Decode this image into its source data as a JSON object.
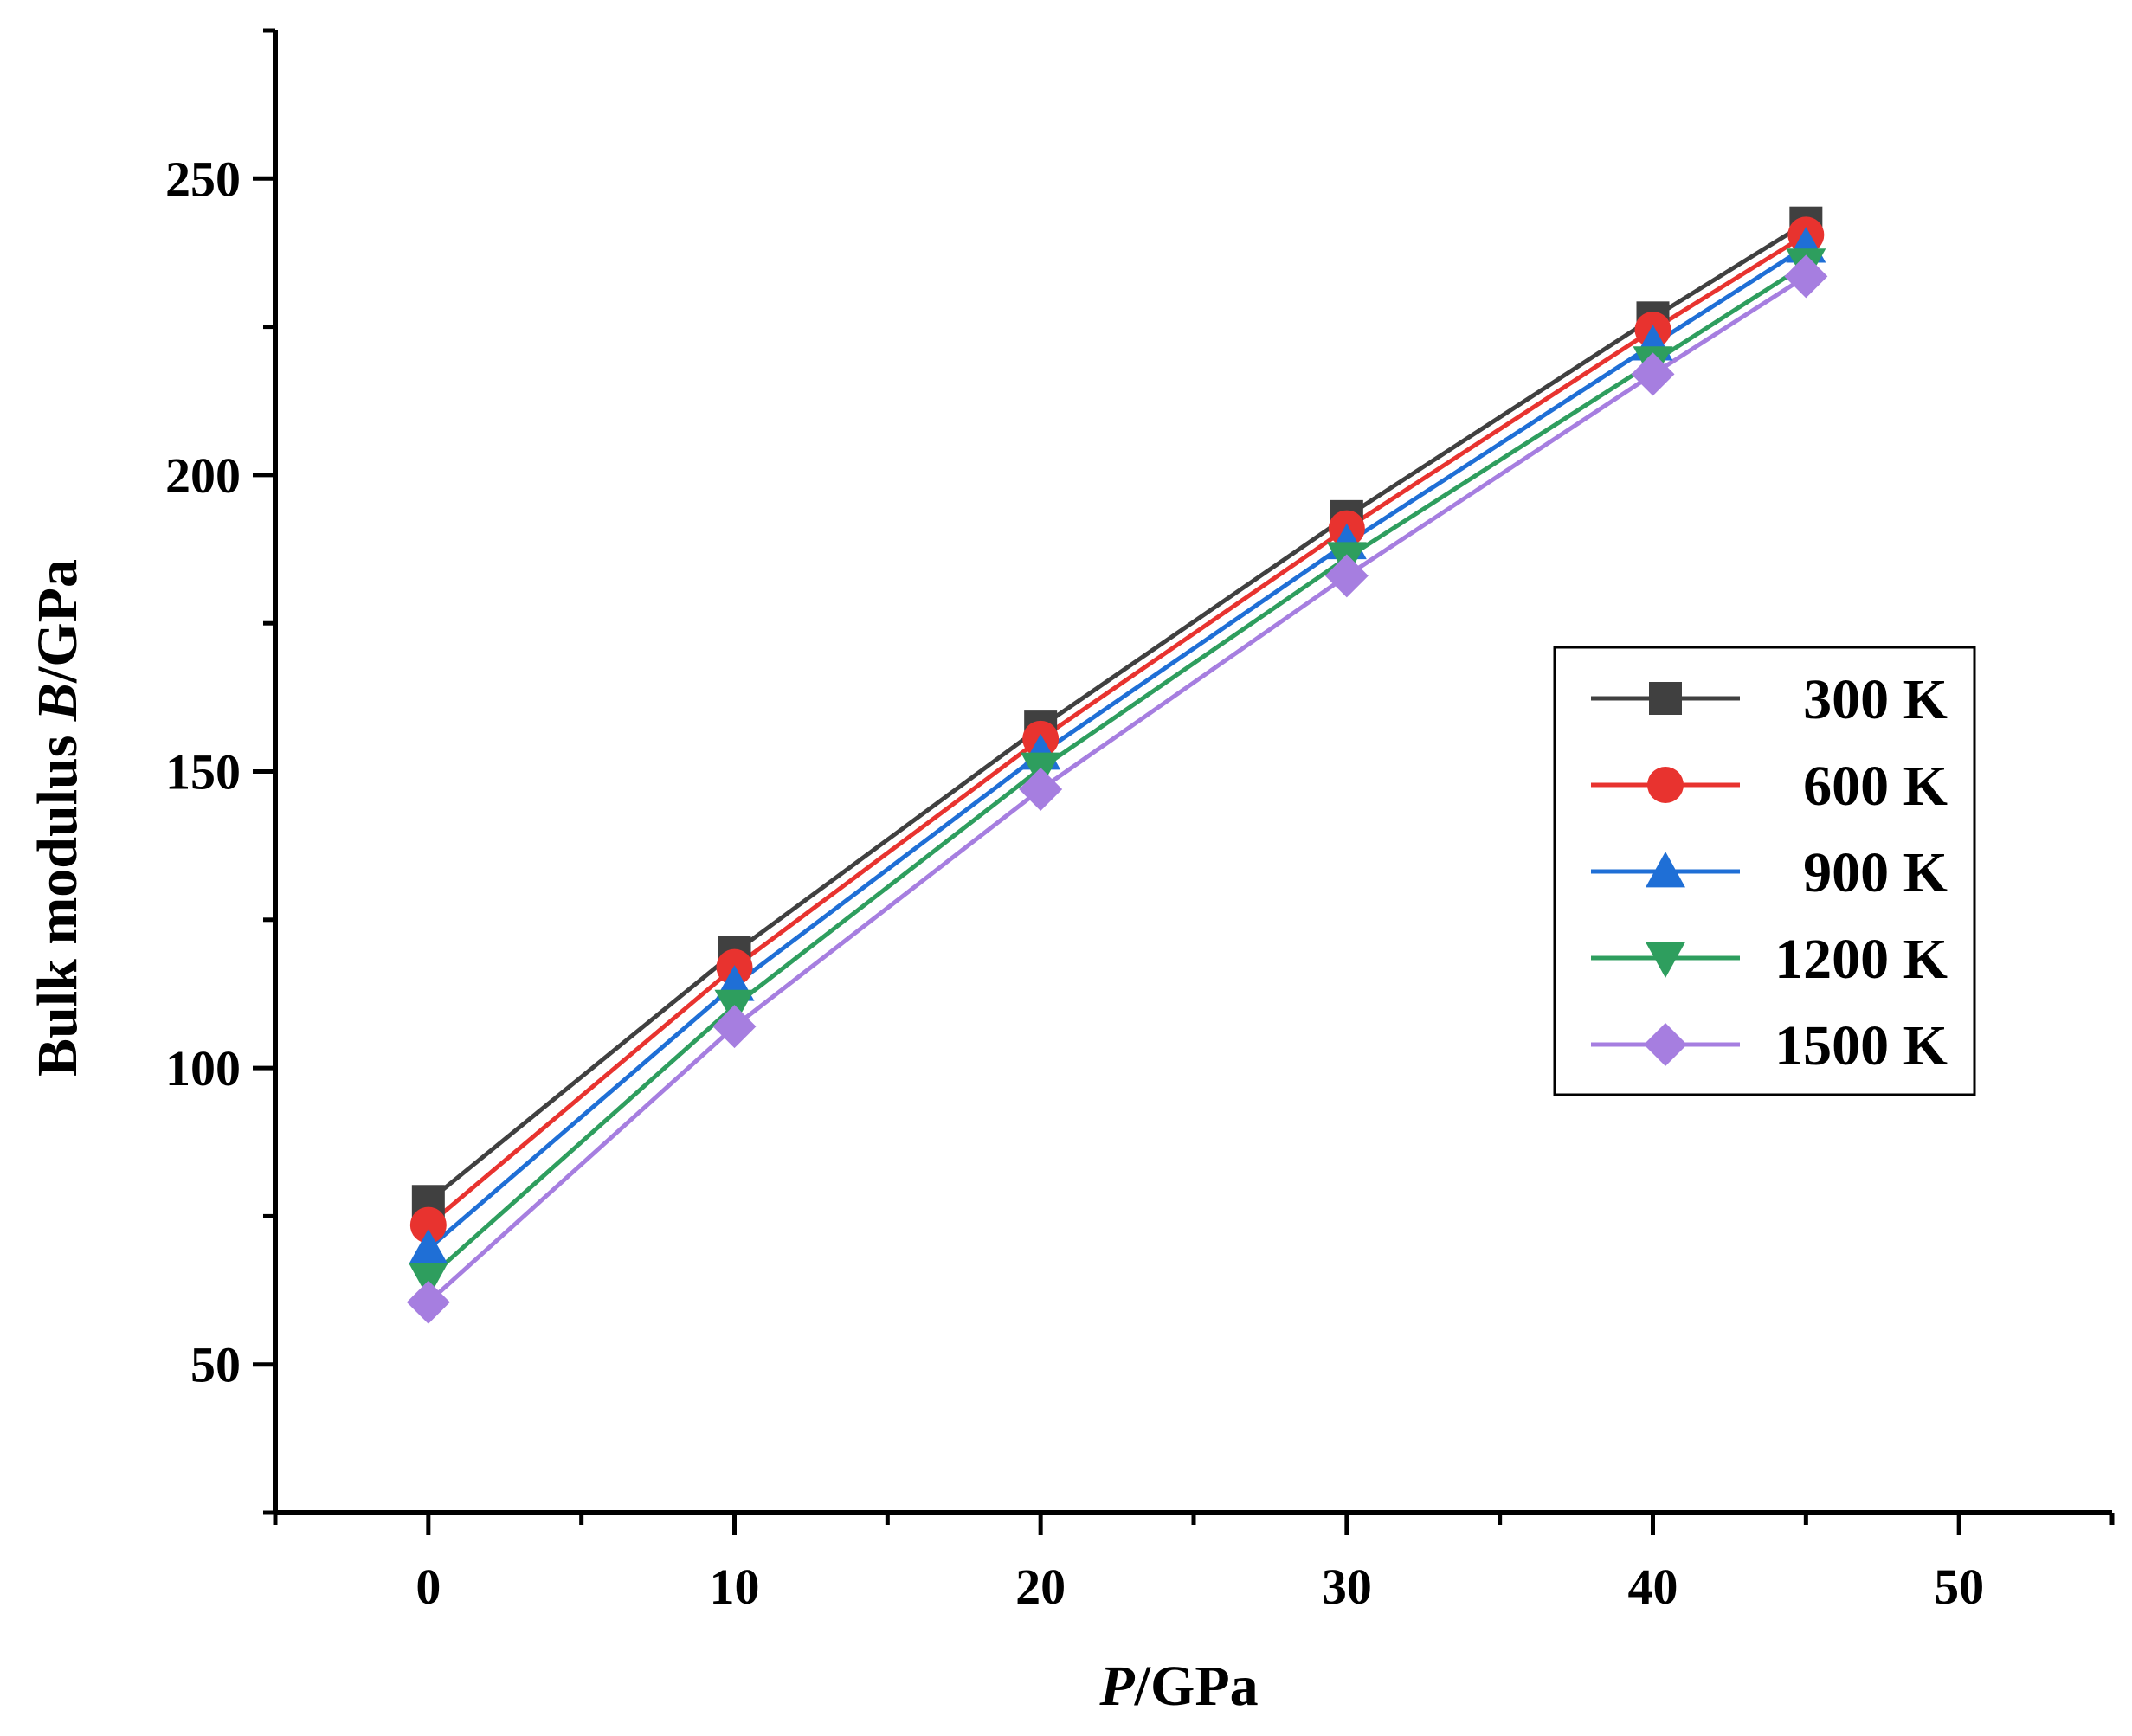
{
  "chart_data": {
    "type": "line",
    "title": "",
    "xlabel": {
      "italic": "P",
      "rest": "/GPa"
    },
    "ylabel": {
      "pre": "Bulk modulus ",
      "italic": "B",
      "post": "/GPa"
    },
    "xlim": [
      -5,
      55
    ],
    "ylim": [
      25,
      275
    ],
    "x_ticks": [
      0,
      10,
      20,
      30,
      40,
      50
    ],
    "x_minor_ticks": [
      -5,
      5,
      15,
      25,
      35,
      45,
      55
    ],
    "y_ticks": [
      50,
      100,
      150,
      200,
      250
    ],
    "y_minor_ticks": [
      25,
      75,
      125,
      175,
      225,
      275
    ],
    "legend_position": "right-center",
    "grid": false,
    "x": [
      0,
      10,
      20,
      30,
      40,
      45
    ],
    "series": [
      {
        "name": "300 K",
        "color": "#404040",
        "marker": "square",
        "values": [
          77.5,
          119.5,
          157.5,
          193.0,
          226.5,
          242.5
        ]
      },
      {
        "name": "600 K",
        "color": "#e8332f",
        "marker": "circle",
        "values": [
          73.5,
          117.0,
          155.5,
          191.0,
          224.5,
          240.5
        ]
      },
      {
        "name": "900 K",
        "color": "#1f6fd6",
        "marker": "triangle-up",
        "values": [
          69.5,
          114.0,
          153.0,
          188.5,
          222.0,
          238.5
        ]
      },
      {
        "name": "1200 K",
        "color": "#2e9e5e",
        "marker": "triangle-down",
        "values": [
          64.5,
          110.5,
          150.5,
          186.0,
          219.0,
          235.5
        ]
      },
      {
        "name": "1500 K",
        "color": "#a67ee0",
        "marker": "diamond",
        "values": [
          60.5,
          107.0,
          147.0,
          183.0,
          217.0,
          233.5
        ]
      }
    ]
  }
}
